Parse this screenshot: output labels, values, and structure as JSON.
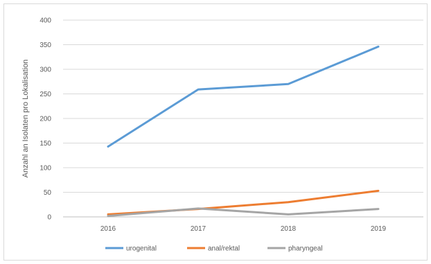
{
  "chart_data": {
    "type": "line",
    "title": "",
    "xlabel": "",
    "ylabel": "Anzahl an Isolaten pro Lokalisation",
    "categories": [
      "2016",
      "2017",
      "2018",
      "2019"
    ],
    "ylim": [
      0,
      400
    ],
    "yticks": [
      0,
      50,
      100,
      150,
      200,
      250,
      300,
      350,
      400
    ],
    "grid": "horizontal",
    "legend_position": "bottom",
    "series": [
      {
        "name": "urogenital",
        "color": "#5b9bd5",
        "values": [
          143,
          259,
          270,
          346
        ]
      },
      {
        "name": "anal/rektal",
        "color": "#ed7d31",
        "values": [
          5,
          16,
          30,
          53
        ]
      },
      {
        "name": "pharyngeal",
        "color": "#a5a5a5",
        "values": [
          2,
          17,
          5,
          16
        ]
      }
    ]
  }
}
